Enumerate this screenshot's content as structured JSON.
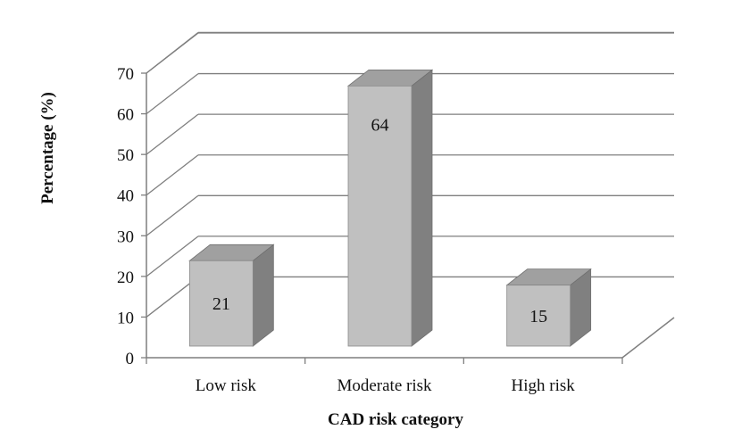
{
  "chart_data": {
    "type": "bar",
    "style": "3d-column",
    "title": "",
    "xlabel": "CAD risk category",
    "ylabel": "Percentage (%)",
    "categories": [
      "Low risk",
      "Moderate risk",
      "High risk"
    ],
    "values": [
      21,
      64,
      15
    ],
    "data_labels": [
      "21",
      "64",
      "15"
    ],
    "ylim": [
      0,
      70
    ],
    "yticks": [
      0,
      10,
      20,
      30,
      40,
      50,
      60,
      70
    ],
    "grid": true,
    "legend": "none",
    "colors": {
      "bar_front": "#c0c0c0",
      "bar_side": "#808080",
      "bar_top": "#a0a0a0",
      "grid": "#7f7f7f",
      "axis": "#7f7f7f"
    }
  }
}
